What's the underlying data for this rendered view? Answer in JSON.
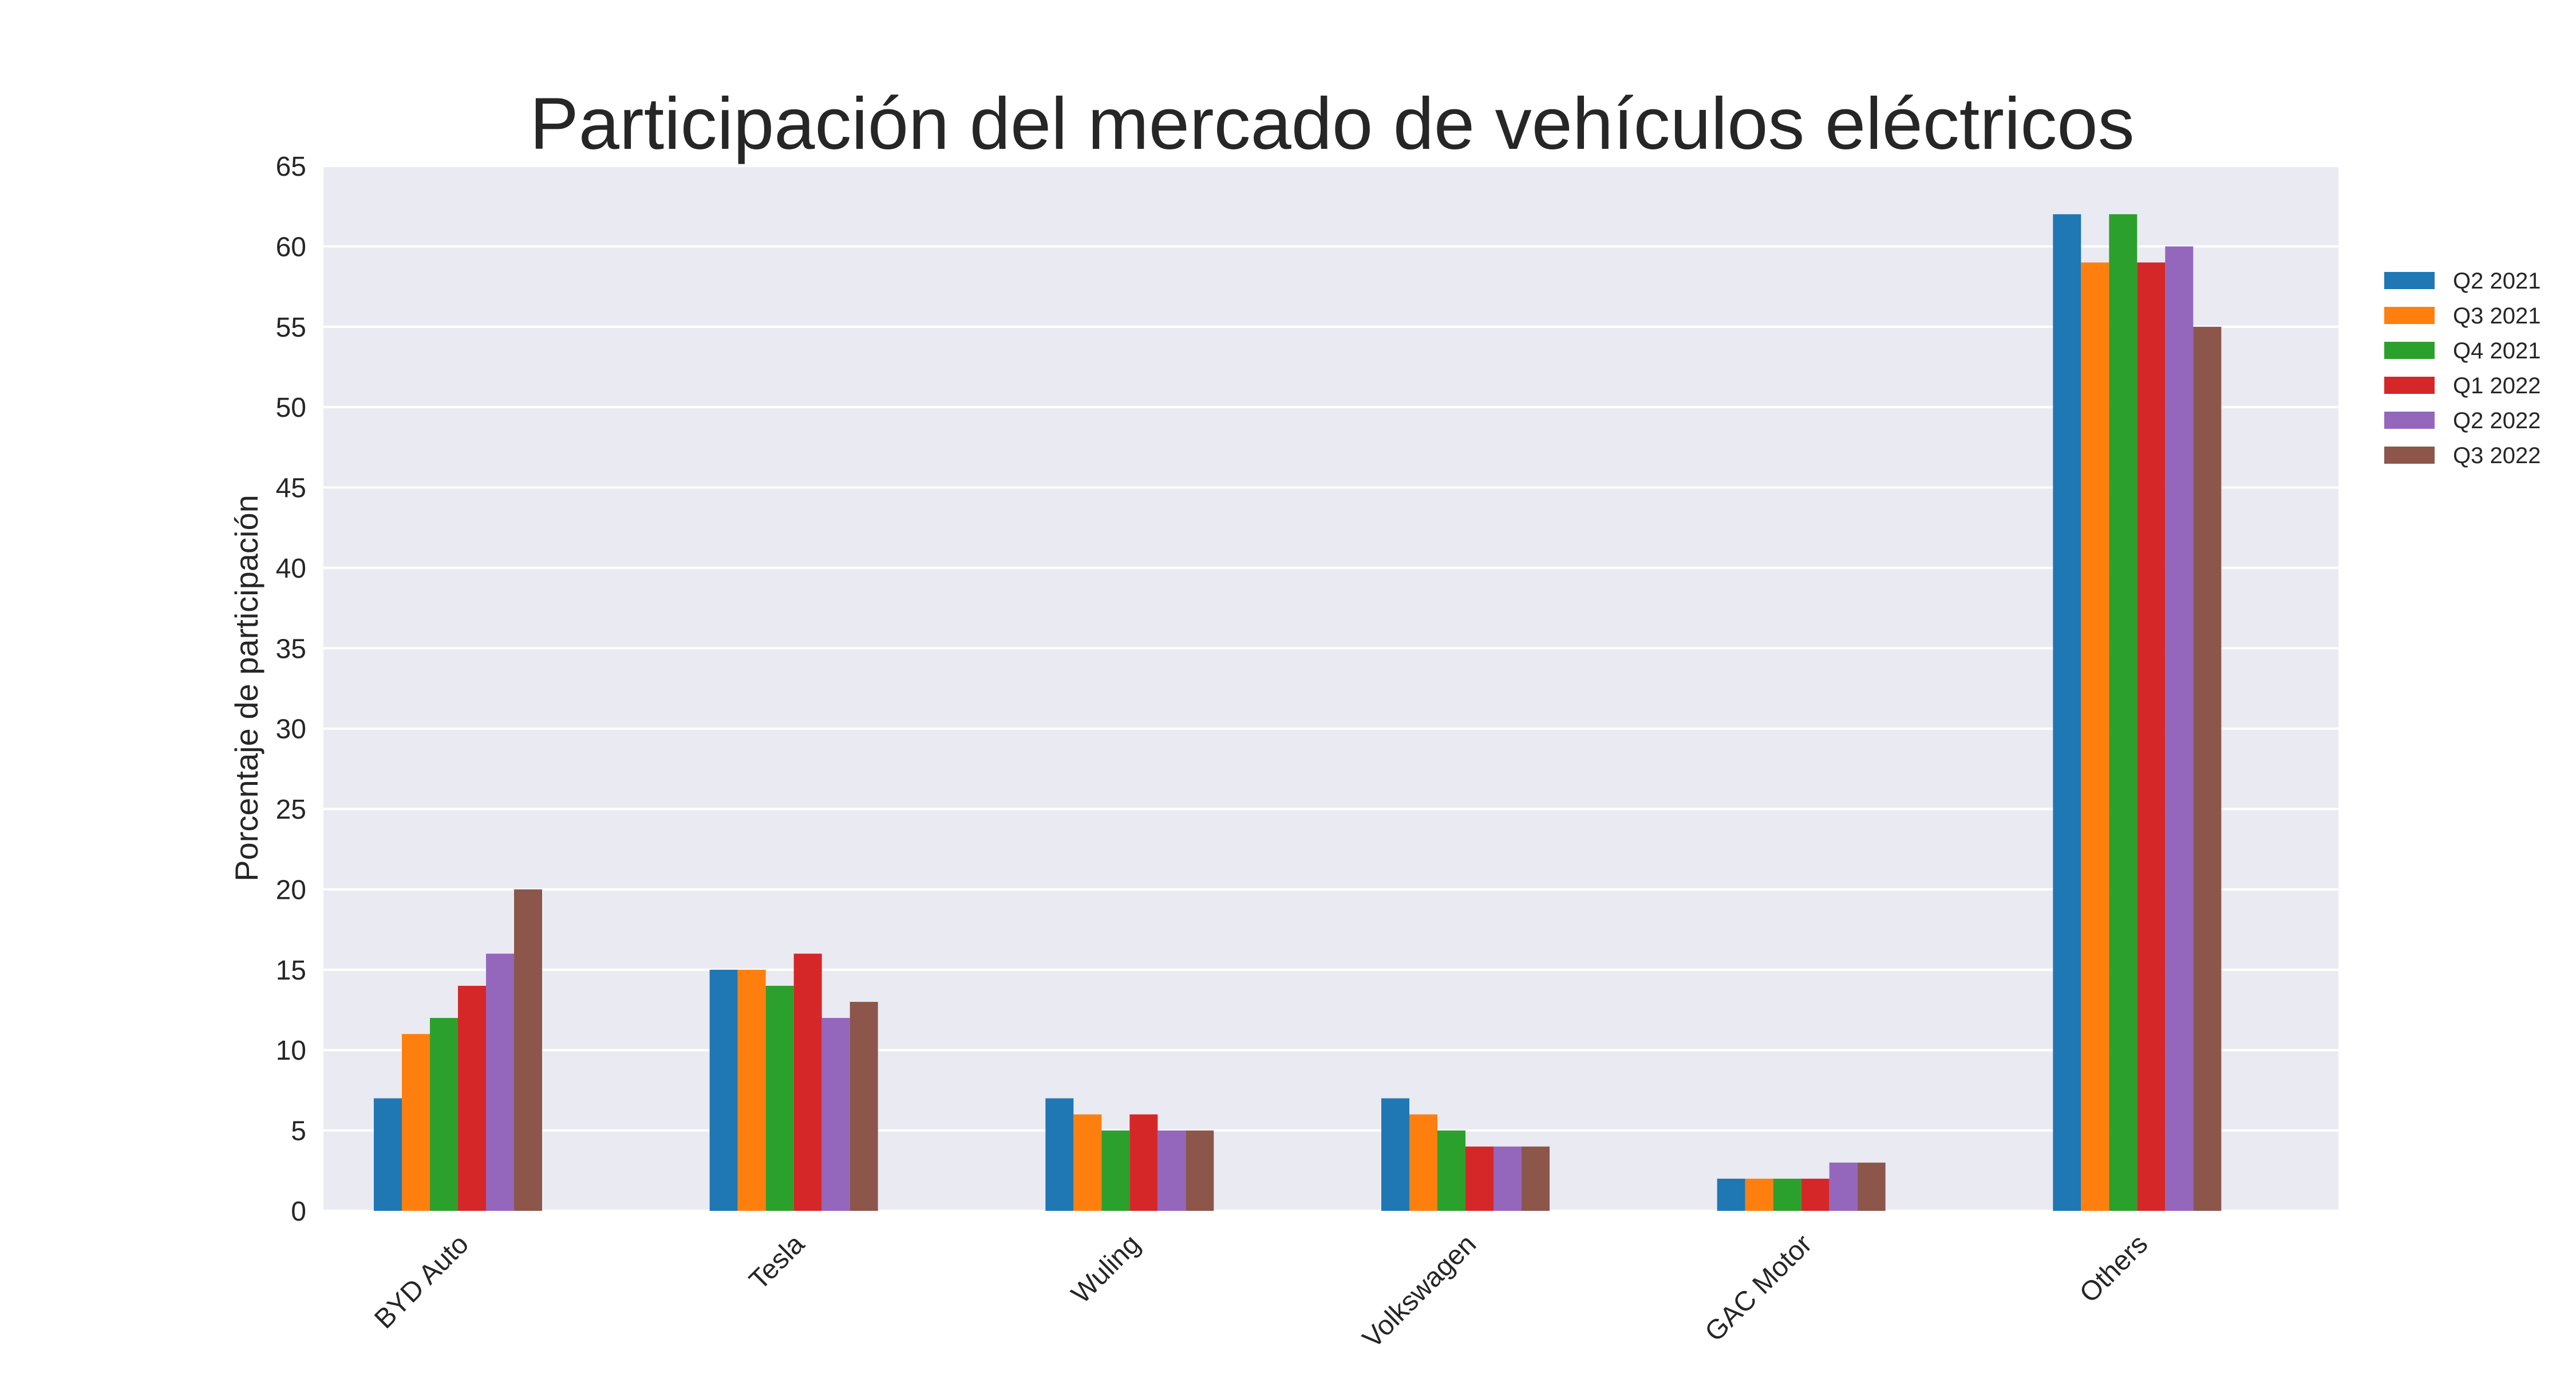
{
  "chart_data": {
    "type": "bar",
    "title": "Participación del mercado de vehículos eléctricos",
    "xlabel": "",
    "ylabel": "Porcentaje de participación",
    "ylim": [
      0,
      65
    ],
    "yticks": [
      0,
      5,
      10,
      15,
      20,
      25,
      30,
      35,
      40,
      45,
      50,
      55,
      60,
      65
    ],
    "grid": true,
    "legend_position": "right",
    "categories": [
      "BYD Auto",
      "Tesla",
      "Wuling",
      "Volkswagen",
      "GAC Motor",
      "Others"
    ],
    "series": [
      {
        "name": "Q2 2021",
        "color": "#1f77b4",
        "values": [
          7,
          15,
          7,
          7,
          2,
          62
        ]
      },
      {
        "name": "Q3 2021",
        "color": "#ff7f0e",
        "values": [
          11,
          15,
          6,
          6,
          2,
          59
        ]
      },
      {
        "name": "Q4 2021",
        "color": "#2ca02c",
        "values": [
          12,
          14,
          5,
          5,
          2,
          62
        ]
      },
      {
        "name": "Q1 2022",
        "color": "#d62728",
        "values": [
          14,
          16,
          6,
          4,
          2,
          59
        ]
      },
      {
        "name": "Q2 2022",
        "color": "#9467bd",
        "values": [
          16,
          12,
          5,
          4,
          3,
          60
        ]
      },
      {
        "name": "Q3 2022",
        "color": "#8c564b",
        "values": [
          20,
          13,
          5,
          4,
          3,
          55
        ]
      }
    ]
  }
}
